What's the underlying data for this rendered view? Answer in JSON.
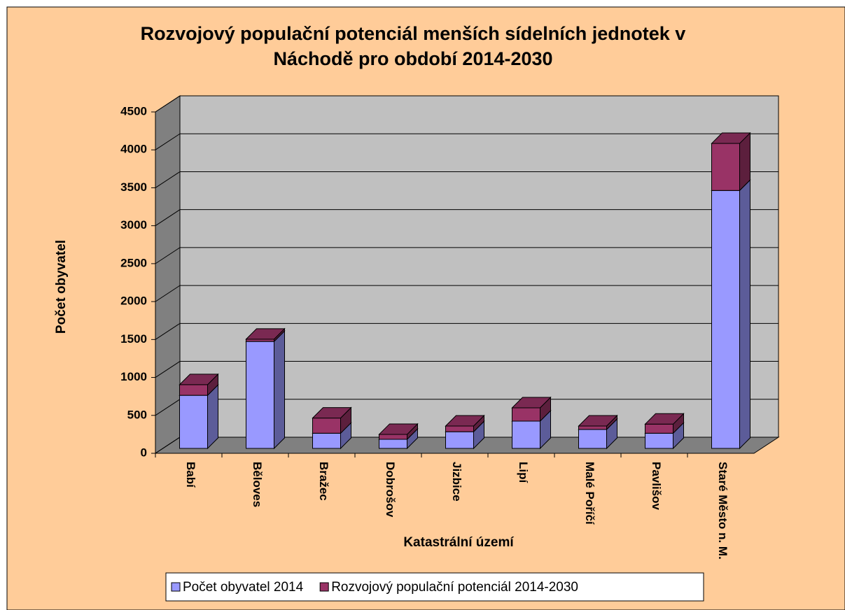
{
  "chart_data": {
    "type": "bar3d_stacked",
    "title": "Rozvojový populační potenciál menších sídelních jednotek v Náchodě pro období 2014-2030",
    "y_label": "Počet obyvatel",
    "x_label": "Katastrální území",
    "categories": [
      "Babí",
      "Běloves",
      "Bražec",
      "Dobrošov",
      "Jizbice",
      "Lipí",
      "Malé Poříčí",
      "Pavlišov",
      "Staré Město n. M."
    ],
    "series": [
      {
        "name": "Počet obyvatel 2014",
        "color": "#9999ff",
        "values": [
          700,
          1410,
          200,
          120,
          220,
          360,
          250,
          200,
          3400
        ]
      },
      {
        "name": "Rozvojový populační potenciál 2014-2030",
        "color": "#993366",
        "values": [
          140,
          30,
          200,
          65,
          75,
          175,
          45,
          120,
          620
        ]
      }
    ],
    "ylim": [
      0,
      4500
    ],
    "yticks": [
      0,
      500,
      1000,
      1500,
      2000,
      2500,
      3000,
      3500,
      4000,
      4500
    ],
    "grid": true,
    "legend": "bottom"
  }
}
